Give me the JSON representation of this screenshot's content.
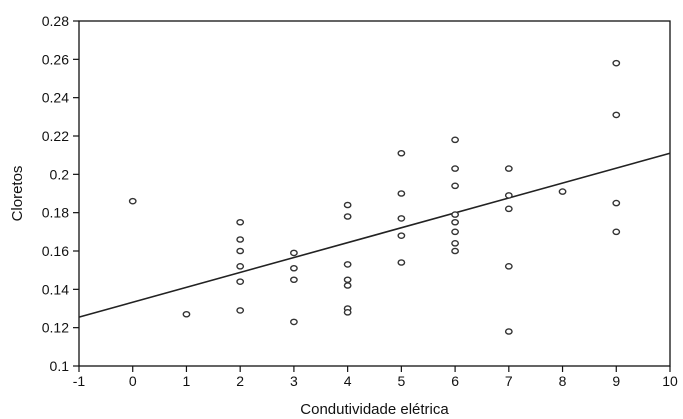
{
  "chart_data": {
    "type": "scatter",
    "title": "",
    "xlabel": "Condutividade elétrica",
    "ylabel": "Cloretos",
    "xlim": [
      -1,
      10
    ],
    "ylim": [
      0.1,
      0.28
    ],
    "xticks": [
      "-1",
      "0",
      "1",
      "2",
      "3",
      "4",
      "5",
      "6",
      "7",
      "8",
      "9",
      "10"
    ],
    "yticks": [
      "0.1",
      "0.12",
      "0.14",
      "0.16",
      "0.18",
      "0.2",
      "0.22",
      "0.24",
      "0.26",
      "0.28"
    ],
    "grid": false,
    "marker": "circle-open",
    "colors": {
      "points": "#333333",
      "line": "#222222",
      "axis": "#111111"
    },
    "points": [
      {
        "x": 0,
        "y": 0.186
      },
      {
        "x": 1,
        "y": 0.127
      },
      {
        "x": 2,
        "y": 0.175
      },
      {
        "x": 2,
        "y": 0.166
      },
      {
        "x": 2,
        "y": 0.16
      },
      {
        "x": 2,
        "y": 0.152
      },
      {
        "x": 2,
        "y": 0.144
      },
      {
        "x": 2,
        "y": 0.129
      },
      {
        "x": 3,
        "y": 0.159
      },
      {
        "x": 3,
        "y": 0.151
      },
      {
        "x": 3,
        "y": 0.145
      },
      {
        "x": 3,
        "y": 0.123
      },
      {
        "x": 4,
        "y": 0.184
      },
      {
        "x": 4,
        "y": 0.178
      },
      {
        "x": 4,
        "y": 0.153
      },
      {
        "x": 4,
        "y": 0.145
      },
      {
        "x": 4,
        "y": 0.142
      },
      {
        "x": 4,
        "y": 0.13
      },
      {
        "x": 4,
        "y": 0.128
      },
      {
        "x": 5,
        "y": 0.211
      },
      {
        "x": 5,
        "y": 0.19
      },
      {
        "x": 5,
        "y": 0.177
      },
      {
        "x": 5,
        "y": 0.168
      },
      {
        "x": 5,
        "y": 0.154
      },
      {
        "x": 6,
        "y": 0.218
      },
      {
        "x": 6,
        "y": 0.203
      },
      {
        "x": 6,
        "y": 0.194
      },
      {
        "x": 6,
        "y": 0.179
      },
      {
        "x": 6,
        "y": 0.175
      },
      {
        "x": 6,
        "y": 0.17
      },
      {
        "x": 6,
        "y": 0.164
      },
      {
        "x": 6,
        "y": 0.16
      },
      {
        "x": 7,
        "y": 0.203
      },
      {
        "x": 7,
        "y": 0.189
      },
      {
        "x": 7,
        "y": 0.182
      },
      {
        "x": 7,
        "y": 0.152
      },
      {
        "x": 7,
        "y": 0.118
      },
      {
        "x": 8,
        "y": 0.191
      },
      {
        "x": 9,
        "y": 0.258
      },
      {
        "x": 9,
        "y": 0.231
      },
      {
        "x": 9,
        "y": 0.185
      },
      {
        "x": 9,
        "y": 0.17
      }
    ],
    "fit_line": {
      "x": [
        -1,
        10
      ],
      "y": [
        0.1255,
        0.211
      ]
    }
  }
}
